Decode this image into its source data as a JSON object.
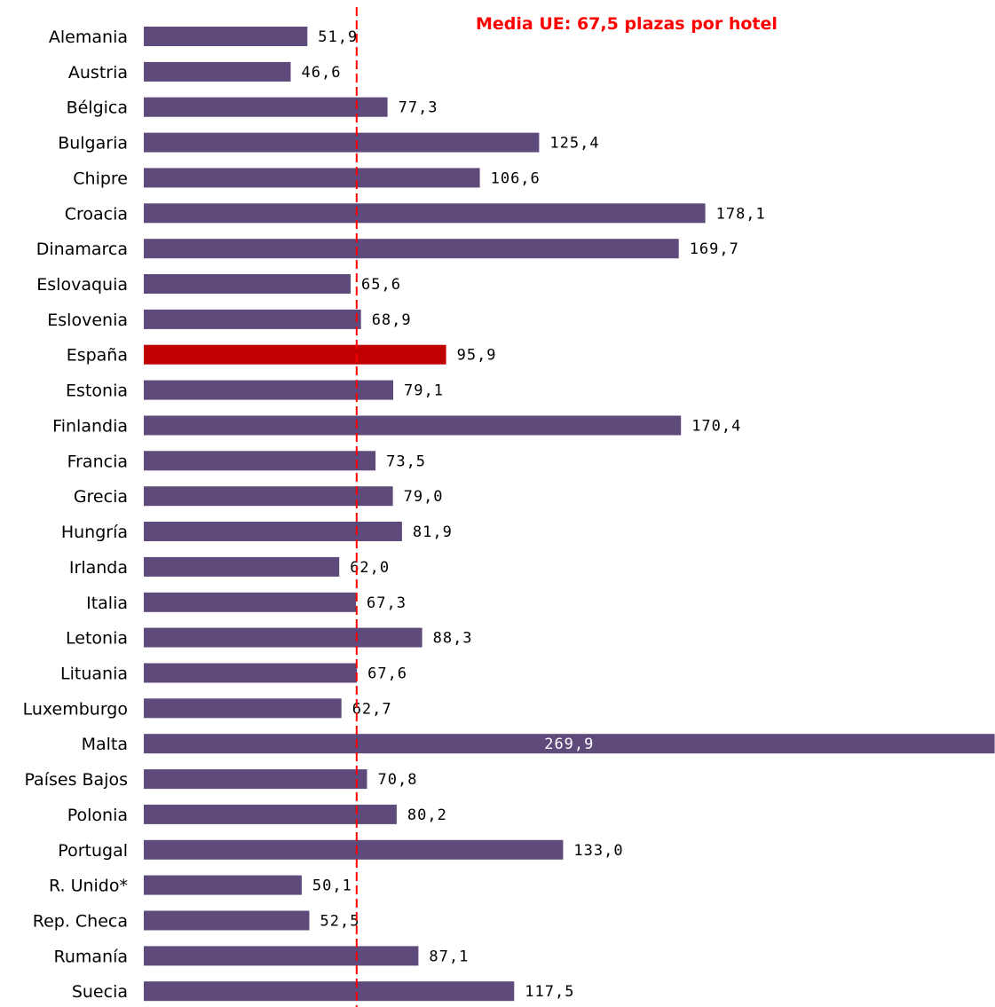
{
  "chart_data": {
    "type": "bar",
    "orientation": "horizontal",
    "categories": [
      "Alemania",
      "Austria",
      "Bélgica",
      "Bulgaria",
      "Chipre",
      "Croacia",
      "Dinamarca",
      "Eslovaquia",
      "Eslovenia",
      "España",
      "Estonia",
      "Finlandia",
      "Francia",
      "Grecia",
      "Hungría",
      "Irlanda",
      "Italia",
      "Letonia",
      "Lituania",
      "Luxemburgo",
      "Malta",
      "Países Bajos",
      "Polonia",
      "Portugal",
      "R. Unido*",
      "Rep. Checa",
      "Rumanía",
      "Suecia"
    ],
    "values": [
      51.9,
      46.6,
      77.3,
      125.4,
      106.6,
      178.1,
      169.7,
      65.6,
      68.9,
      95.9,
      79.1,
      170.4,
      73.5,
      79.0,
      81.9,
      62.0,
      67.3,
      88.3,
      67.6,
      62.7,
      269.9,
      70.8,
      80.2,
      133.0,
      50.1,
      52.5,
      87.1,
      117.5
    ],
    "value_labels": [
      "51,9",
      "46,6",
      "77,3",
      "125,4",
      "106,6",
      "178,1",
      "169,7",
      "65,6",
      "68,9",
      "95,9",
      "79,1",
      "170,4",
      "73,5",
      "79,0",
      "81,9",
      "62,0",
      "67,3",
      "88,3",
      "67,6",
      "62,7",
      "269,9",
      "70,8",
      "80,2",
      "133,0",
      "50,1",
      "52,5",
      "87,1",
      "117,5"
    ],
    "highlight_category": "España",
    "xlim": [
      0,
      270
    ],
    "grid": false,
    "legend": "none",
    "reference_line": {
      "value": 67.5,
      "style": "dashed"
    },
    "annotation": "Media UE: 67,5 plazas por hotel",
    "colors": {
      "bar": "#5e4a7b",
      "highlight": "#c00000",
      "reference": "#ff0000"
    }
  }
}
